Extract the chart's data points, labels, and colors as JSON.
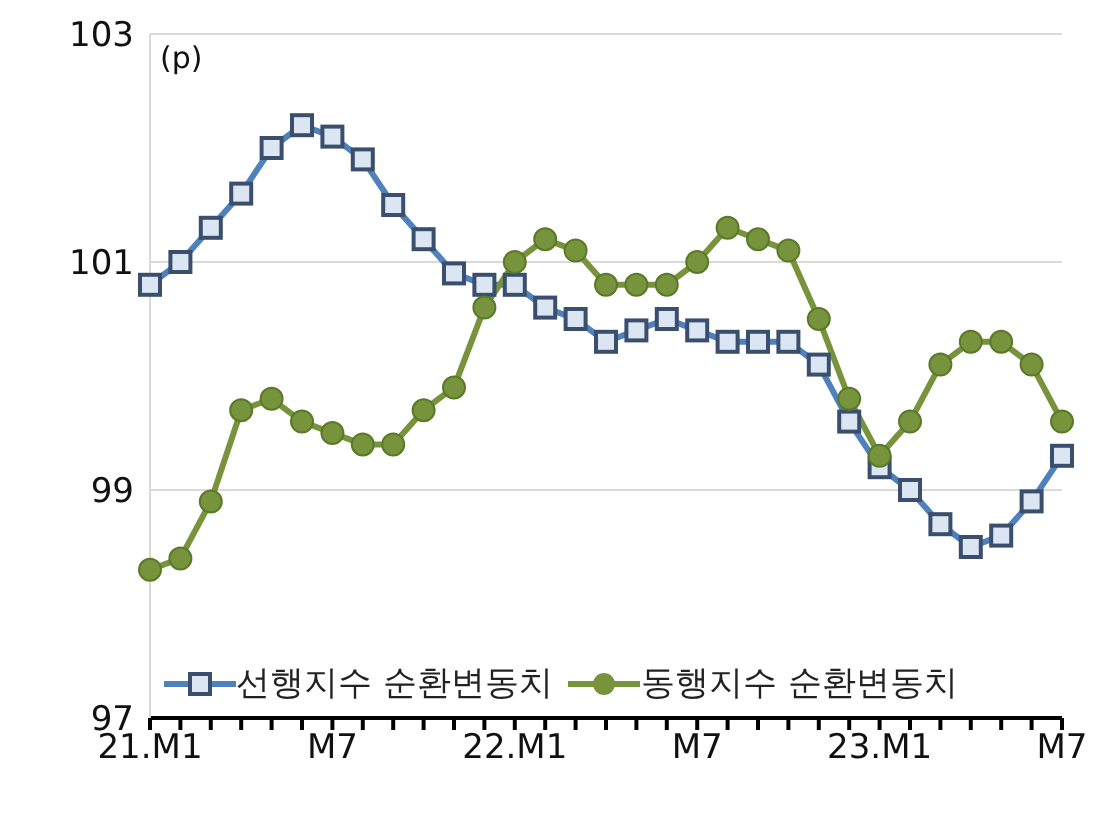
{
  "chart_data": {
    "type": "line",
    "categories": [
      "21.M1",
      null,
      null,
      null,
      null,
      null,
      "M7",
      null,
      null,
      null,
      null,
      null,
      "22.M1",
      null,
      null,
      null,
      null,
      null,
      "M7",
      null,
      null,
      null,
      null,
      null,
      "23.M1",
      null,
      null,
      null,
      null,
      null,
      "M7"
    ],
    "series": [
      {
        "name": "선행지수 순환변동치",
        "color": "#4f81bd",
        "marker": "square",
        "values": [
          100.8,
          101.0,
          101.3,
          101.6,
          102.0,
          102.2,
          102.1,
          101.9,
          101.5,
          101.2,
          100.9,
          100.8,
          100.8,
          100.6,
          100.5,
          100.3,
          100.4,
          100.5,
          100.4,
          100.3,
          100.3,
          100.3,
          100.1,
          99.6,
          99.2,
          99.0,
          98.7,
          98.5,
          98.6,
          98.9,
          99.3
        ]
      },
      {
        "name": "동행지수 순환변동치",
        "color": "#77933c",
        "marker": "circle",
        "values": [
          98.3,
          98.4,
          98.9,
          99.7,
          99.8,
          99.6,
          99.5,
          99.4,
          99.4,
          99.7,
          99.9,
          100.6,
          101.0,
          101.2,
          101.1,
          100.8,
          100.8,
          100.8,
          101.0,
          101.3,
          101.2,
          101.1,
          100.5,
          99.8,
          99.3,
          99.6,
          100.1,
          100.3,
          100.3,
          100.1,
          99.6
        ]
      }
    ],
    "ylim": [
      97,
      103
    ],
    "yticks": [
      97,
      99,
      101,
      103
    ],
    "grid": "y",
    "legend": "bottom",
    "line_style": "solid",
    "annotations": [
      "(p)"
    ]
  }
}
